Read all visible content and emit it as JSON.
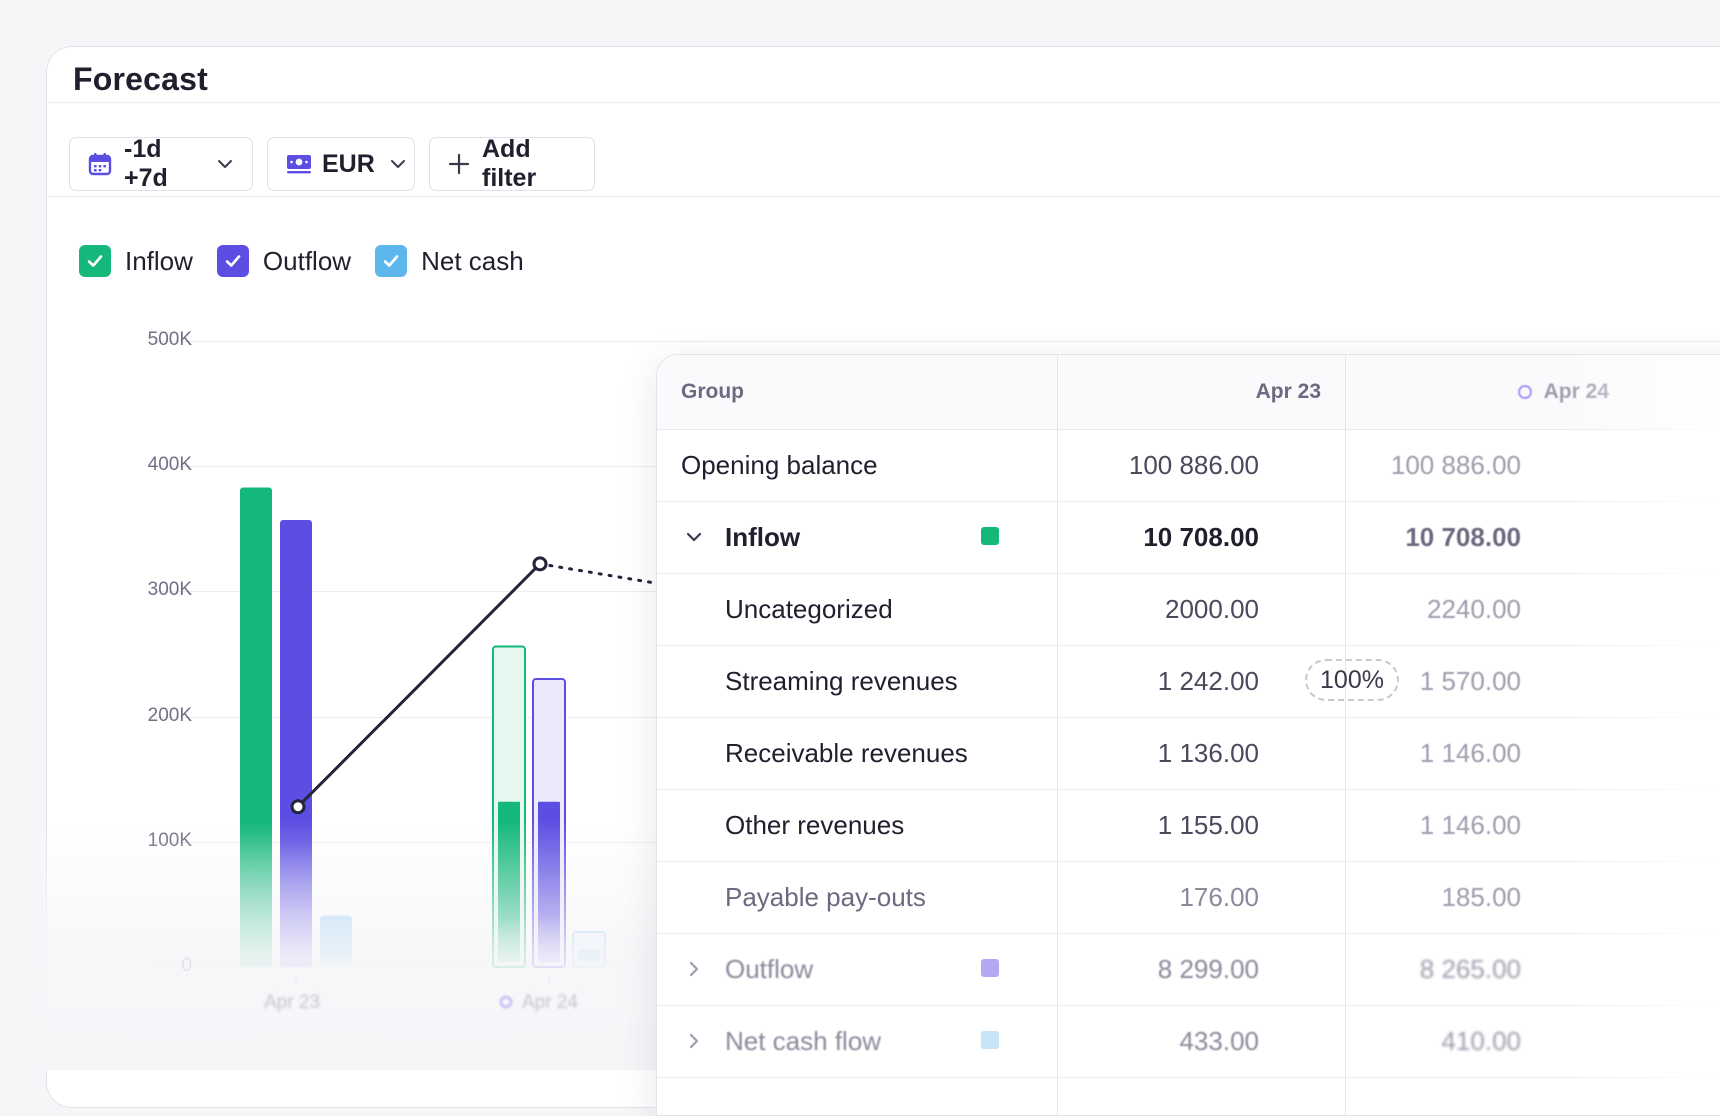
{
  "card": {
    "title": "Forecast"
  },
  "toolbar": {
    "range_label": "-1d +7d",
    "currency_label": "EUR",
    "add_filter_label": "Add filter"
  },
  "legend": [
    {
      "label": "Inflow",
      "color": "#14b87a",
      "checked": true
    },
    {
      "label": "Outflow",
      "color": "#5c4ee3",
      "checked": true
    },
    {
      "label": "Net cash",
      "color": "#5db7ec",
      "checked": true
    }
  ],
  "chart_data": {
    "type": "bar",
    "categories": [
      "Apr 23",
      "Apr 24"
    ],
    "series": [
      {
        "name": "Inflow",
        "values": [
          383000,
          256000
        ],
        "inner_values": [
          null,
          132000
        ],
        "color": "#14b87a"
      },
      {
        "name": "Outflow",
        "values": [
          357000,
          230000
        ],
        "inner_values": [
          null,
          132000
        ],
        "color": "#5c4ee3"
      },
      {
        "name": "Net cash",
        "values": [
          41000,
          28000
        ],
        "inner_values": [
          null,
          14000
        ],
        "color": "#a9d6f5"
      }
    ],
    "line": {
      "values": [
        128000,
        322000
      ]
    },
    "ylim": [
      0,
      500000
    ],
    "yticks": [
      "0",
      "100K",
      "200K",
      "300K",
      "400K",
      "500K"
    ],
    "grid": true
  },
  "table": {
    "headers": {
      "group": "Group",
      "col1": "Apr 23",
      "col2": "Apr 24"
    },
    "rows": [
      {
        "label": "Opening balance",
        "v1": "100 886.00",
        "v2": "100 886.00",
        "kind": "plain"
      },
      {
        "label": "Inflow",
        "v1": "10 708.00",
        "v2": "10 708.00",
        "kind": "group-open",
        "color": "#14b87a"
      },
      {
        "label": "Uncategorized",
        "v1": "2000.00",
        "v2": "2240.00",
        "kind": "child"
      },
      {
        "label": "Streaming revenues",
        "v1": "1 242.00",
        "v2": "1 570.00",
        "kind": "child",
        "badge": "100%"
      },
      {
        "label": "Receivable revenues",
        "v1": "1 136.00",
        "v2": "1 146.00",
        "kind": "child"
      },
      {
        "label": "Other revenues",
        "v1": "1 155.00",
        "v2": "1 146.00",
        "kind": "child"
      },
      {
        "label": "Payable pay-outs",
        "v1": "176.00",
        "v2": "185.00",
        "kind": "child"
      },
      {
        "label": "Outflow",
        "v1": "8 299.00",
        "v2": "8 265.00",
        "kind": "group-closed",
        "color": "#b4a8f3"
      },
      {
        "label": "Net cash flow",
        "v1": "433.00",
        "v2": "410.00",
        "kind": "group-closed",
        "color": "#c8e4f8"
      }
    ]
  }
}
